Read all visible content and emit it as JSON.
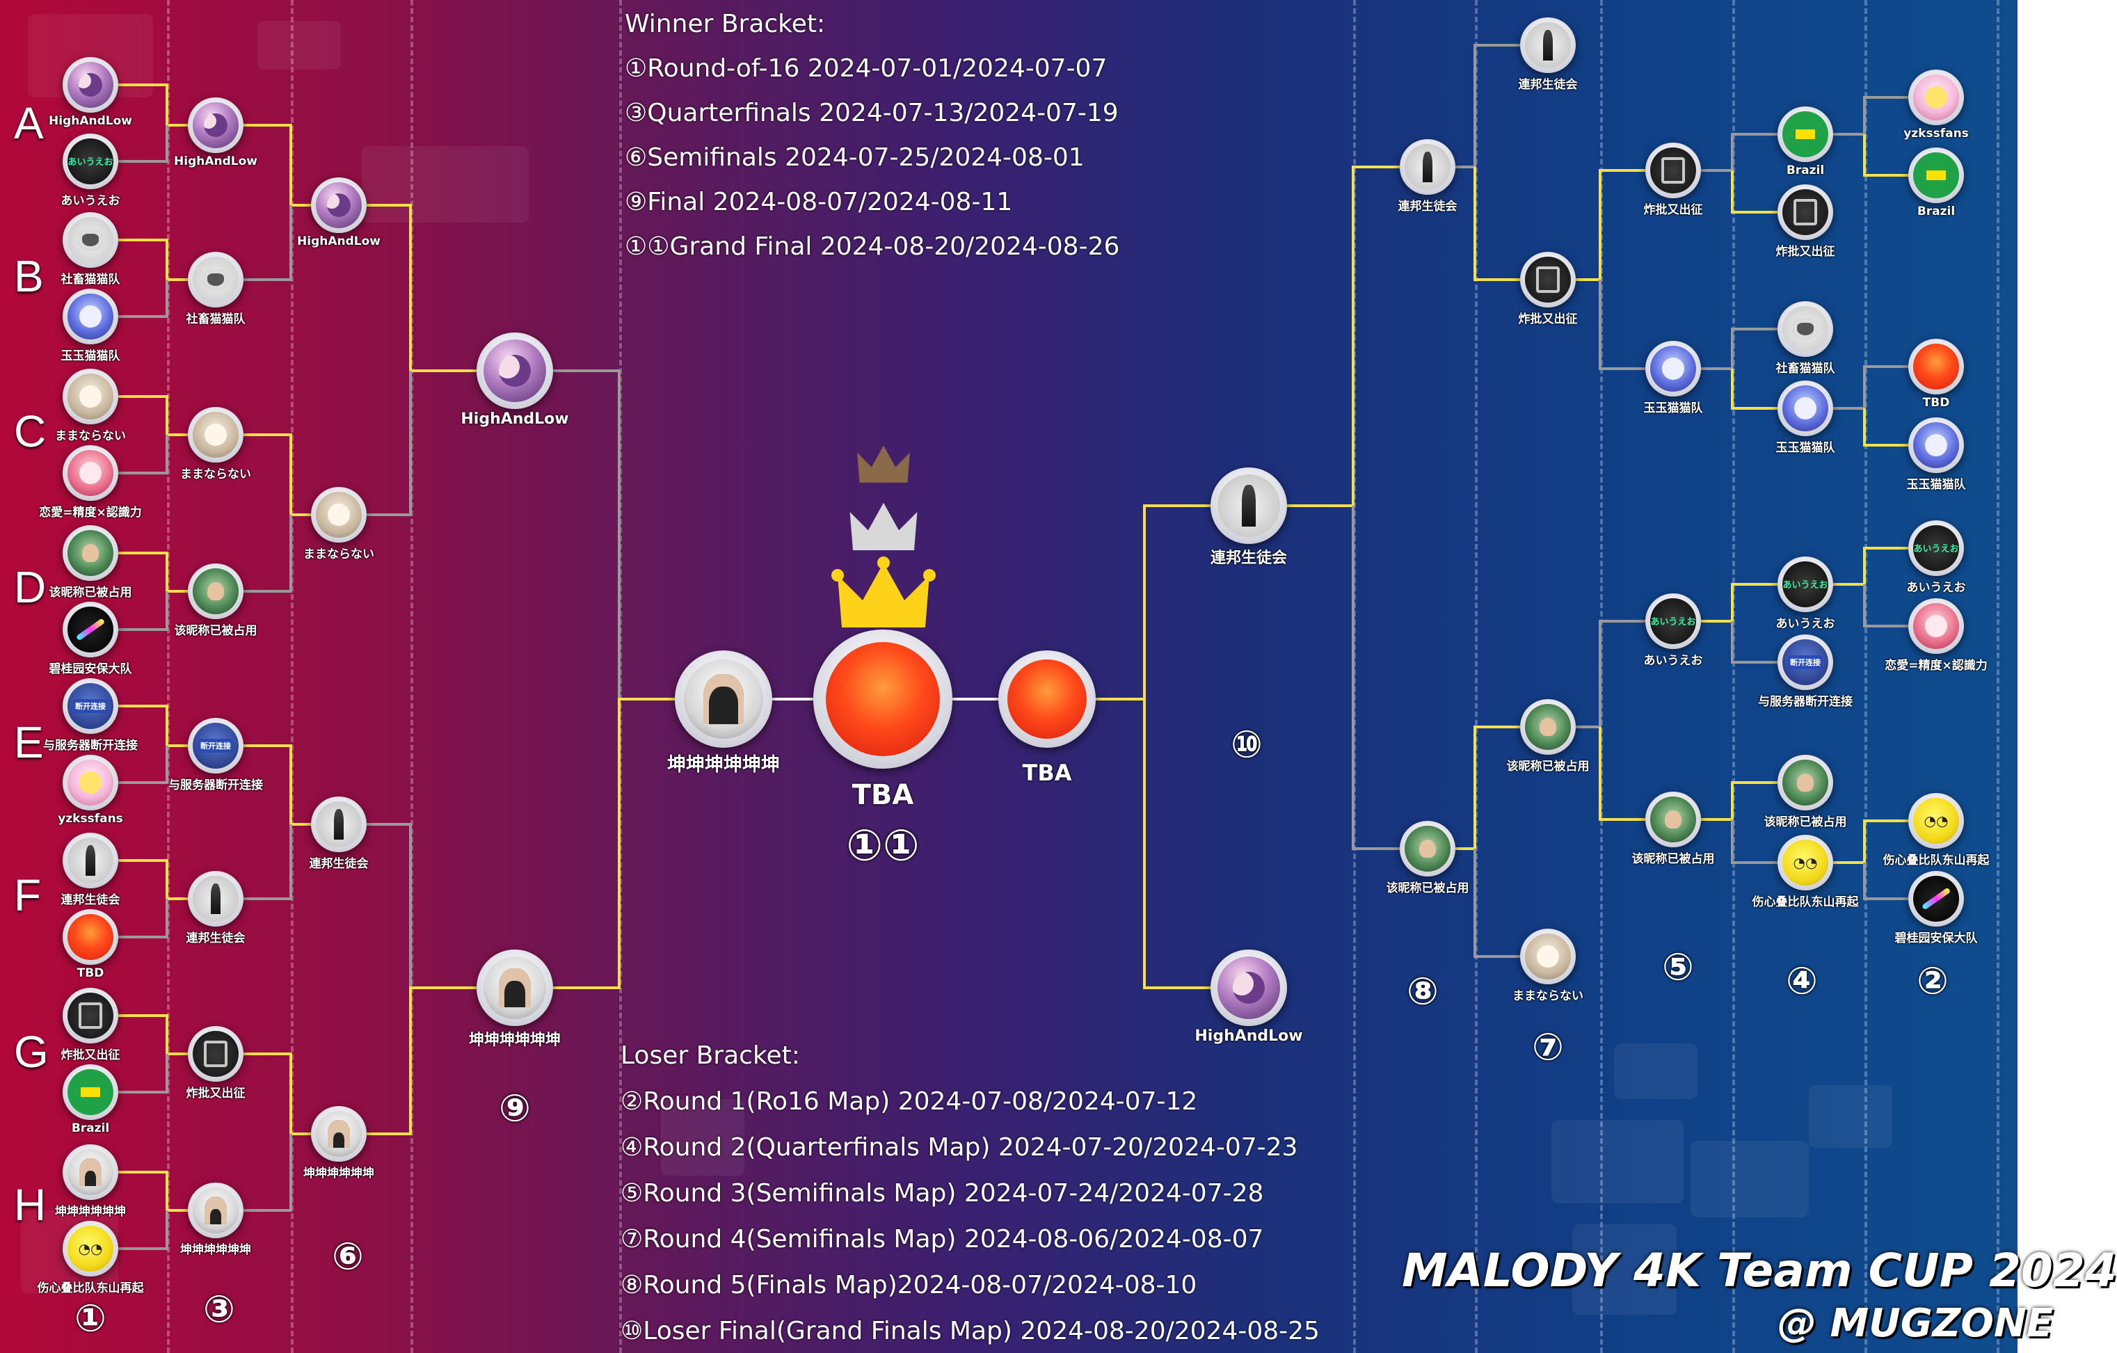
{
  "schedule": {
    "winner_title": "Winner Bracket:",
    "winner_rows": [
      "①Round-of-16  2024-07-01/2024-07-07",
      "③Quarterfinals  2024-07-13/2024-07-19",
      "⑥Semifinals 2024-07-25/2024-08-01",
      "⑨Final  2024-08-07/2024-08-11",
      "①①Grand Final 2024-08-20/2024-08-26"
    ],
    "loser_title": "Loser Bracket:",
    "loser_rows": [
      "②Round 1(Ro16 Map)  2024-07-08/2024-07-12",
      "④Round 2(Quarterfinals Map)  2024-07-20/2024-07-23",
      "⑤Round 3(Semifinals Map) 2024-07-24/2024-07-28",
      "⑦Round 4(Semifinals Map) 2024-08-06/2024-08-07",
      "⑧Round 5(Finals Map)2024-08-07/2024-08-10",
      "⑩Loser Final(Grand Finals Map) 2024-08-20/2024-08-25"
    ]
  },
  "groups": [
    "A",
    "B",
    "C",
    "D",
    "E",
    "F",
    "G",
    "H"
  ],
  "winner_round_markers": [
    "①",
    "③",
    "⑥",
    "⑨"
  ],
  "loser_round_markers": [
    "②",
    "④",
    "⑤",
    "⑦",
    "⑧",
    "⑩"
  ],
  "grand_final": {
    "label": "TBA",
    "marker": "①①",
    "loser_final_label": "TBA"
  },
  "teams": [
    {
      "name": "HighAndLow",
      "avatar": "anime",
      "icon": "anime-avatar-icon"
    },
    {
      "name": "あいうえお",
      "avatar": "game",
      "icon": "game-avatar-icon"
    },
    {
      "name": "社畜猫猫队",
      "avatar": "cat",
      "icon": "cat-avatar-icon"
    },
    {
      "name": "玉玉猫猫队",
      "avatar": "blue",
      "icon": "anime-avatar-icon"
    },
    {
      "name": "ままならない",
      "avatar": "beige",
      "icon": "anime-avatar-icon"
    },
    {
      "name": "恋愛=精度×認識力",
      "avatar": "pink",
      "icon": "anime-avatar-icon"
    },
    {
      "name": "该昵称已被占用",
      "avatar": "person",
      "icon": "person-avatar-icon"
    },
    {
      "name": "碧桂园安保大队",
      "avatar": "stroke",
      "icon": "abstract-avatar-icon"
    },
    {
      "name": "与服务器断开连接",
      "avatar": "server",
      "icon": "server-avatar-icon"
    },
    {
      "name": "yzkssfans",
      "avatar": "fox",
      "icon": "anime-avatar-icon"
    },
    {
      "name": "連邦生徒会",
      "avatar": "tower",
      "icon": "tower-avatar-icon"
    },
    {
      "name": "TBD",
      "avatar": "red",
      "icon": "placeholder-avatar-icon"
    },
    {
      "name": "炸批又出征",
      "avatar": "dark",
      "icon": "dark-avatar-icon"
    },
    {
      "name": "Brazil",
      "avatar": "brazil",
      "icon": "brazil-flag-icon"
    },
    {
      "name": "坤坤坤坤坤坤",
      "avatar": "hood",
      "icon": "person-avatar-icon"
    },
    {
      "name": "伤心叠比队东山再起",
      "avatar": "smile",
      "icon": "smiley-avatar-icon"
    }
  ],
  "title": {
    "line1": "MALODY 4K Team CUP 2024",
    "line2": "@ MUGZONE"
  },
  "colors": {
    "advance_wire": "#f4e04a",
    "eliminated_wire": "#9a9a9a",
    "gold_crown": "#ffd21a",
    "silver_crown": "#d8d8d8",
    "bronze_crown": "#8b6a4a"
  }
}
